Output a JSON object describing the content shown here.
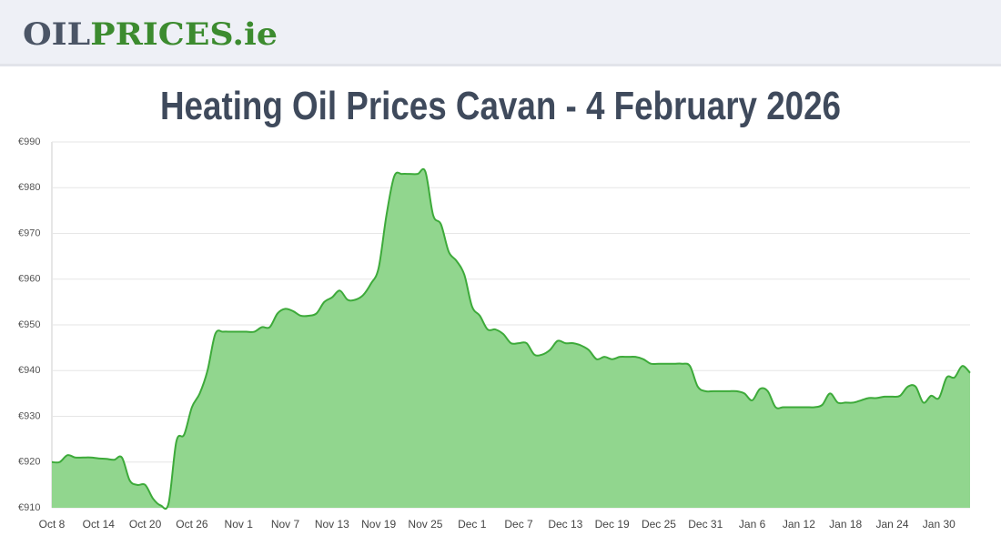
{
  "header": {
    "logo_dark": "OIL",
    "logo_green": "PRICES.ie"
  },
  "chart_data": {
    "type": "area",
    "title": "Heating Oil Prices Cavan - 4 February 2026",
    "categories": [
      "Oct 8",
      null,
      null,
      null,
      null,
      null,
      "Oct 14",
      null,
      null,
      null,
      null,
      null,
      "Oct 20",
      null,
      null,
      null,
      null,
      null,
      "Oct 26",
      null,
      null,
      null,
      null,
      null,
      "Nov 1",
      null,
      null,
      null,
      null,
      null,
      "Nov 7",
      null,
      null,
      null,
      null,
      null,
      "Nov 13",
      null,
      null,
      null,
      null,
      null,
      "Nov 19",
      null,
      null,
      null,
      null,
      null,
      "Nov 25",
      null,
      null,
      null,
      null,
      null,
      "Dec 1",
      null,
      null,
      null,
      null,
      null,
      "Dec 7",
      null,
      null,
      null,
      null,
      null,
      "Dec 13",
      null,
      null,
      null,
      null,
      null,
      "Dec 19",
      null,
      null,
      null,
      null,
      null,
      "Dec 25",
      null,
      null,
      null,
      null,
      null,
      "Dec 31",
      null,
      null,
      null,
      null,
      null,
      "Jan 6",
      null,
      null,
      null,
      null,
      null,
      "Jan 12",
      null,
      null,
      null,
      null,
      null,
      "Jan 18",
      null,
      null,
      null,
      null,
      null,
      "Jan 24",
      null,
      null,
      null,
      null,
      null,
      "Jan 30",
      null,
      null,
      null,
      null
    ],
    "series": [
      {
        "color": "#3daa3a",
        "fill": "#91d68e",
        "values": [
          920,
          920,
          921.5,
          921,
          921,
          921,
          920.8,
          920.7,
          920.5,
          921,
          916,
          915,
          915,
          912,
          910.5,
          911,
          924.5,
          926,
          932,
          935,
          940,
          948,
          948.5,
          948.5,
          948.5,
          948.5,
          948.5,
          949.5,
          949.5,
          952.5,
          953.5,
          953,
          952,
          952,
          952.5,
          955,
          956,
          957.5,
          955.5,
          955.5,
          956.5,
          959,
          962.5,
          974,
          982.5,
          983,
          983,
          983,
          983.5,
          974,
          972,
          966,
          964,
          961,
          954,
          952,
          949,
          949,
          948,
          946,
          946,
          946,
          943.5,
          943.5,
          944.5,
          946.5,
          946,
          946,
          945.5,
          944.5,
          942.5,
          943,
          942.5,
          943,
          943,
          943,
          942.5,
          941.5,
          941.5,
          941.5,
          941.5,
          941.5,
          941,
          936.5,
          935.5,
          935.5,
          935.5,
          935.5,
          935.5,
          935,
          933.5,
          936,
          935.5,
          932,
          932,
          932,
          932,
          932,
          932,
          932.5,
          935,
          933,
          933,
          933,
          933.5,
          934,
          934,
          934.3,
          934.3,
          934.5,
          936.5,
          936.5,
          933,
          934.5,
          934,
          938.5,
          938.5,
          941,
          939.5
        ]
      }
    ],
    "ylim": [
      910,
      990
    ],
    "yticks": [
      {
        "value": 910,
        "label": "€910"
      },
      {
        "value": 920,
        "label": "€920"
      },
      {
        "value": 930,
        "label": "€930"
      },
      {
        "value": 940,
        "label": "€940"
      },
      {
        "value": 950,
        "label": "€950"
      },
      {
        "value": 960,
        "label": "€960"
      },
      {
        "value": 970,
        "label": "€970"
      },
      {
        "value": 980,
        "label": "€980"
      },
      {
        "value": 990,
        "label": "€990"
      }
    ],
    "grid": true
  }
}
